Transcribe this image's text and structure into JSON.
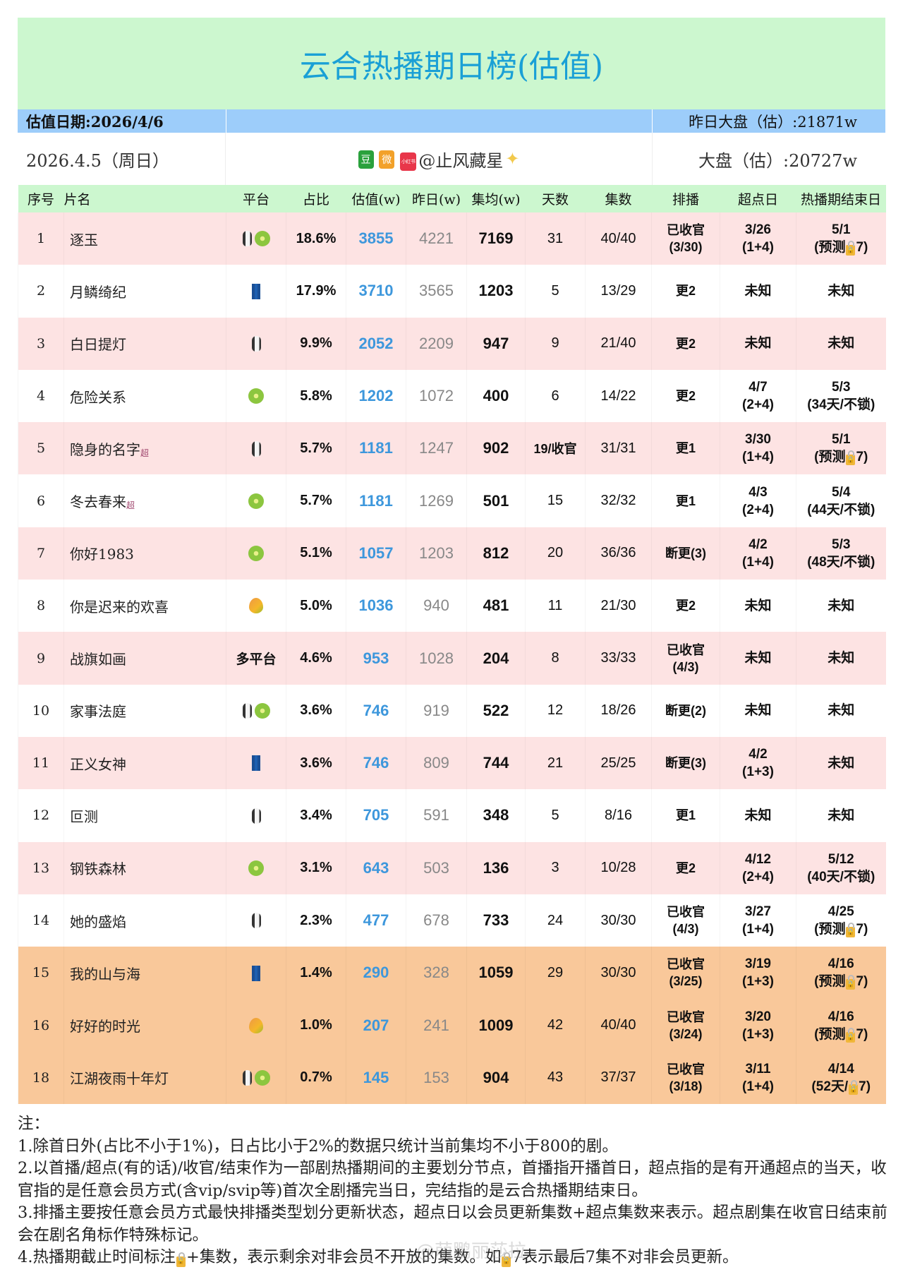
{
  "title": "云合热播期日榜(估值)",
  "date_row": {
    "est_date": "估值日期:2026/4/6",
    "yesterday_total": "昨日大盘（估）:21871w"
  },
  "info_row": {
    "day": "2026.4.5（周日）",
    "author": "@止风藏星",
    "author_badges": [
      {
        "label": "豆",
        "color": "#2aa13c"
      },
      {
        "label": "微",
        "color": "#f2a12a"
      },
      {
        "label": "小红书",
        "color": "#e8364a"
      }
    ],
    "total": "大盘（估）:20727w"
  },
  "columns": [
    "序号",
    "片名",
    "平台",
    "占比",
    "估值(w)",
    "昨日(w)",
    "集均(w)",
    "天数",
    "集数",
    "排播",
    "超点日",
    "热播期结束日"
  ],
  "rows": [
    {
      "idx": "1",
      "name": "逐玉",
      "sup": "",
      "platforms": [
        "penguin",
        "kiwi"
      ],
      "pct": "18.6%",
      "est": "3855",
      "yest": "4221",
      "avg": "7169",
      "days": "31",
      "eps": "40/40",
      "sched": [
        "已收官",
        "(3/30)"
      ],
      "super": [
        "3/26",
        "(1+4)"
      ],
      "end": [
        "5/1",
        "(预测🔒7)"
      ],
      "style": "pink"
    },
    {
      "idx": "2",
      "name": "月鳞绮纪",
      "sup": "",
      "platforms": [
        "jeans"
      ],
      "pct": "17.9%",
      "est": "3710",
      "yest": "3565",
      "avg": "1203",
      "days": "5",
      "eps": "13/29",
      "sched": [
        "更2"
      ],
      "super": [
        "未知"
      ],
      "end": [
        "未知"
      ],
      "style": "white"
    },
    {
      "idx": "3",
      "name": "白日提灯",
      "sup": "",
      "platforms": [
        "penguin"
      ],
      "pct": "9.9%",
      "est": "2052",
      "yest": "2209",
      "avg": "947",
      "days": "9",
      "eps": "21/40",
      "sched": [
        "更2"
      ],
      "super": [
        "未知"
      ],
      "end": [
        "未知"
      ],
      "style": "pink"
    },
    {
      "idx": "4",
      "name": "危险关系",
      "sup": "",
      "platforms": [
        "kiwi"
      ],
      "pct": "5.8%",
      "est": "1202",
      "yest": "1072",
      "avg": "400",
      "days": "6",
      "eps": "14/22",
      "sched": [
        "更2"
      ],
      "super": [
        "4/7",
        "(2+4)"
      ],
      "end": [
        "5/3",
        "(34天/不锁)"
      ],
      "style": "white"
    },
    {
      "idx": "5",
      "name": "隐身的名字",
      "sup": "超",
      "platforms": [
        "penguin"
      ],
      "pct": "5.7%",
      "est": "1181",
      "yest": "1247",
      "avg": "902",
      "days": "19/收官",
      "eps": "31/31",
      "sched": [
        "更1"
      ],
      "super": [
        "3/30",
        "(1+4)"
      ],
      "end": [
        "5/1",
        "(预测🔒7)"
      ],
      "style": "pink"
    },
    {
      "idx": "6",
      "name": "冬去春来",
      "sup": "超",
      "platforms": [
        "kiwi"
      ],
      "pct": "5.7%",
      "est": "1181",
      "yest": "1269",
      "avg": "501",
      "days": "15",
      "eps": "32/32",
      "sched": [
        "更1"
      ],
      "super": [
        "4/3",
        "(2+4)"
      ],
      "end": [
        "5/4",
        "(44天/不锁)"
      ],
      "style": "white"
    },
    {
      "idx": "7",
      "name": "你好1983",
      "sup": "",
      "platforms": [
        "kiwi"
      ],
      "pct": "5.1%",
      "est": "1057",
      "yest": "1203",
      "avg": "812",
      "days": "20",
      "eps": "36/36",
      "sched": [
        "断更(3)"
      ],
      "super": [
        "4/2",
        "(1+4)"
      ],
      "end": [
        "5/3",
        "(48天/不锁)"
      ],
      "style": "pink"
    },
    {
      "idx": "8",
      "name": "你是迟来的欢喜",
      "sup": "",
      "platforms": [
        "mango"
      ],
      "pct": "5.0%",
      "est": "1036",
      "yest": "940",
      "avg": "481",
      "days": "11",
      "eps": "21/30",
      "sched": [
        "更2"
      ],
      "super": [
        "未知"
      ],
      "end": [
        "未知"
      ],
      "style": "white"
    },
    {
      "idx": "9",
      "name": "战旗如画",
      "sup": "",
      "platforms": [],
      "platform_text": "多平台",
      "pct": "4.6%",
      "est": "953",
      "yest": "1028",
      "avg": "204",
      "days": "8",
      "eps": "33/33",
      "sched": [
        "已收官",
        "(4/3)"
      ],
      "super": [
        "未知"
      ],
      "end": [
        "未知"
      ],
      "style": "pink"
    },
    {
      "idx": "10",
      "name": "家事法庭",
      "sup": "",
      "platforms": [
        "penguin",
        "kiwi"
      ],
      "pct": "3.6%",
      "est": "746",
      "yest": "919",
      "avg": "522",
      "days": "12",
      "eps": "18/26",
      "sched": [
        "断更(2)"
      ],
      "super": [
        "未知"
      ],
      "end": [
        "未知"
      ],
      "style": "white"
    },
    {
      "idx": "11",
      "name": "正义女神",
      "sup": "",
      "platforms": [
        "jeans"
      ],
      "pct": "3.6%",
      "est": "746",
      "yest": "809",
      "avg": "744",
      "days": "21",
      "eps": "25/25",
      "sched": [
        "断更(3)"
      ],
      "super": [
        "4/2",
        "(1+3)"
      ],
      "end": [
        "未知"
      ],
      "style": "pink"
    },
    {
      "idx": "12",
      "name": "叵测",
      "sup": "",
      "platforms": [
        "penguin"
      ],
      "pct": "3.4%",
      "est": "705",
      "yest": "591",
      "avg": "348",
      "days": "5",
      "eps": "8/16",
      "sched": [
        "更1"
      ],
      "super": [
        "未知"
      ],
      "end": [
        "未知"
      ],
      "style": "white"
    },
    {
      "idx": "13",
      "name": "钢铁森林",
      "sup": "",
      "platforms": [
        "kiwi"
      ],
      "pct": "3.1%",
      "est": "643",
      "yest": "503",
      "avg": "136",
      "days": "3",
      "eps": "10/28",
      "sched": [
        "更2"
      ],
      "super": [
        "4/12",
        "(2+4)"
      ],
      "end": [
        "5/12",
        "(40天/不锁)"
      ],
      "style": "pink"
    },
    {
      "idx": "14",
      "name": "她的盛焰",
      "sup": "",
      "platforms": [
        "penguin"
      ],
      "pct": "2.3%",
      "est": "477",
      "yest": "678",
      "avg": "733",
      "days": "24",
      "eps": "30/30",
      "sched": [
        "已收官",
        "(4/3)"
      ],
      "super": [
        "3/27",
        "(1+4)"
      ],
      "end": [
        "4/25",
        "(预测🔒7)"
      ],
      "style": "white"
    },
    {
      "idx": "15",
      "name": "我的山与海",
      "sup": "",
      "platforms": [
        "jeans"
      ],
      "pct": "1.4%",
      "est": "290",
      "yest": "328",
      "avg": "1059",
      "days": "29",
      "eps": "30/30",
      "sched": [
        "已收官",
        "(3/25)"
      ],
      "super": [
        "3/19",
        "(1+3)"
      ],
      "end": [
        "4/16",
        "(预测🔒7)"
      ],
      "style": "orange"
    },
    {
      "idx": "16",
      "name": "好好的时光",
      "sup": "",
      "platforms": [
        "mango"
      ],
      "pct": "1.0%",
      "est": "207",
      "yest": "241",
      "avg": "1009",
      "days": "42",
      "eps": "40/40",
      "sched": [
        "已收官",
        "(3/24)"
      ],
      "super": [
        "3/20",
        "(1+3)"
      ],
      "end": [
        "4/16",
        "(预测🔒7)"
      ],
      "style": "orange"
    },
    {
      "idx": "18",
      "name": "江湖夜雨十年灯",
      "sup": "",
      "platforms": [
        "penguin",
        "kiwi"
      ],
      "pct": "0.7%",
      "est": "145",
      "yest": "153",
      "avg": "904",
      "days": "43",
      "eps": "37/37",
      "sched": [
        "已收官",
        "(3/18)"
      ],
      "super": [
        "3/11",
        "(1+4)"
      ],
      "end": [
        "4/14",
        "(52天/🔒7)"
      ],
      "style": "orange"
    }
  ],
  "notes": {
    "heading": "注：",
    "items": [
      "1.除首日外(占比不小于1%)，日占比小于2%的数据只统计当前集均不小于800的剧。",
      "2.以首播/超点(有的话)/收官/结束作为一部剧热播期间的主要划分节点，首播指开播首日，超点指的是有开通超点的当天，收官指的是任意会员方式(含vip/svip等)首次全剧播完当日，完结指的是云合热播期结束日。",
      "3.排播主要按任意会员方式最快排播类型划分更新状态，超点日以会员更新集数+超点集数来表示。超点剧集在收官日结束前会在剧名角标作特殊标记。",
      "4.热播期截止时间标注🔒+集数，表示剩余对非会员不开放的集数。如🔒7表示最后7集不对非会员更新。"
    ]
  },
  "watermark": "@萌鹏丽莎拉",
  "colors": {
    "title": "#1aa0d6",
    "title_bg": "#ccf7cf",
    "date_bg": "#9dcdfa",
    "row_pink": "#fde3e3",
    "row_orange": "#f9c89a",
    "estimate": "#3d97dc"
  }
}
